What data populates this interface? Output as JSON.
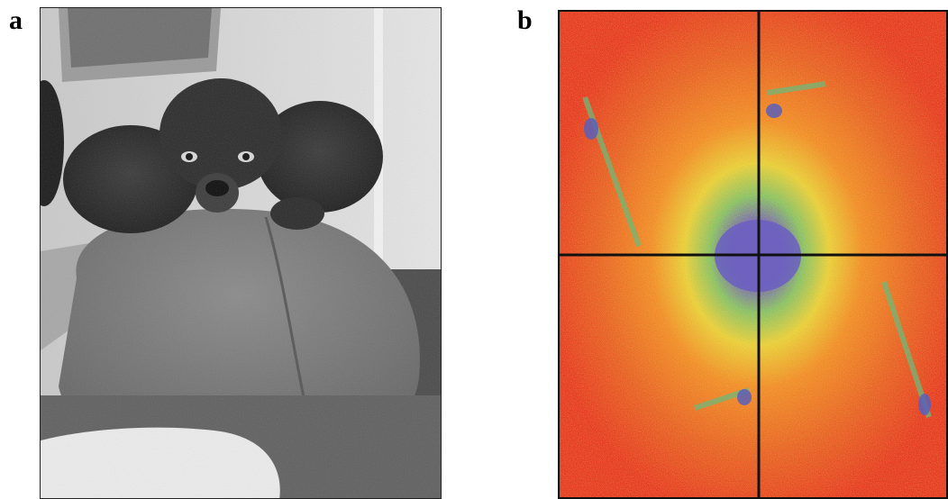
{
  "figure": {
    "panels": [
      {
        "label": "a"
      },
      {
        "label": "b"
      }
    ]
  },
  "colors": {
    "spectrum_background": "#e4301f",
    "spectrum_mid_orange": "#f08a25",
    "spectrum_mid_yellow": "#e7d33a",
    "spectrum_mid_green": "#7cc46a",
    "spectrum_center": "#6a5fc1",
    "axis_lines": "#111111"
  }
}
